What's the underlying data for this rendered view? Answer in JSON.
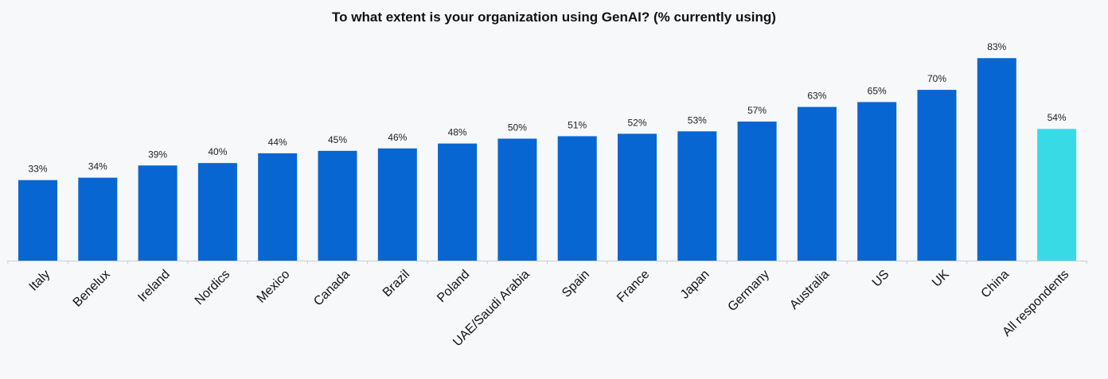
{
  "chart_data": {
    "type": "bar",
    "title": "To what extent is your organization using GenAI? (% currently using)",
    "categories": [
      "Italy",
      "Benelux",
      "Ireland",
      "Nordics",
      "Mexico",
      "Canada",
      "Brazil",
      "Poland",
      "UAE/Saudi Arabia",
      "Spain",
      "France",
      "Japan",
      "Germany",
      "Australia",
      "US",
      "UK",
      "China",
      "All respondents"
    ],
    "values": [
      33,
      34,
      39,
      40,
      44,
      45,
      46,
      48,
      50,
      51,
      52,
      53,
      57,
      63,
      65,
      70,
      83,
      54
    ],
    "value_labels": [
      "33%",
      "34%",
      "39%",
      "40%",
      "44%",
      "45%",
      "46%",
      "48%",
      "50%",
      "51%",
      "52%",
      "53%",
      "57%",
      "63%",
      "65%",
      "70%",
      "83%",
      "54%"
    ],
    "highlight_category": "All respondents",
    "ylim": [
      0,
      100
    ],
    "grid": false,
    "legend": "none",
    "colors": {
      "bar": "#0866d2",
      "highlight": "#38dbe5",
      "axis": "#c7ccd3"
    }
  }
}
